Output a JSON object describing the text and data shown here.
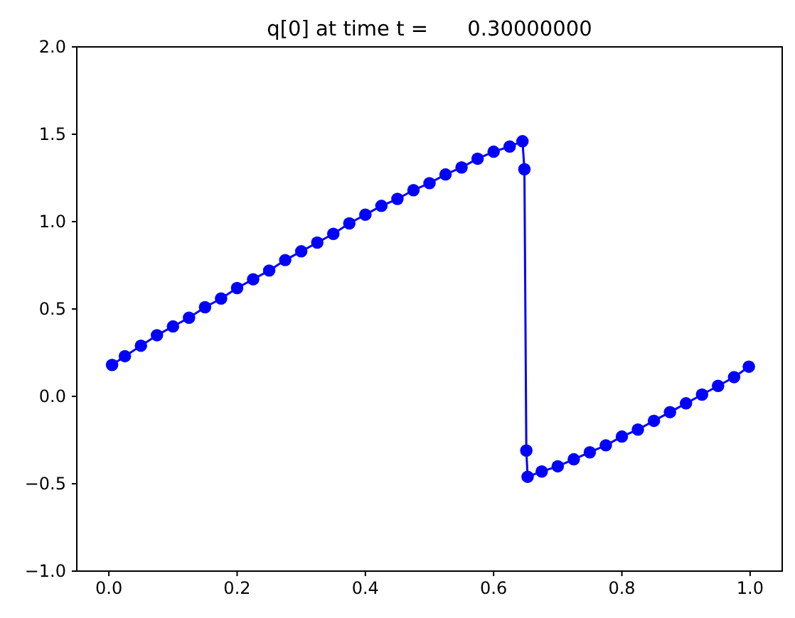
{
  "chart_data": {
    "type": "line",
    "title": "q[0] at time t =      0.30000000",
    "x": [
      0.005,
      0.025,
      0.05,
      0.075,
      0.1,
      0.125,
      0.15,
      0.175,
      0.2,
      0.225,
      0.25,
      0.275,
      0.3,
      0.325,
      0.35,
      0.375,
      0.4,
      0.425,
      0.45,
      0.475,
      0.5,
      0.525,
      0.55,
      0.575,
      0.6,
      0.625,
      0.645,
      0.648,
      0.651,
      0.653,
      0.675,
      0.7,
      0.725,
      0.75,
      0.775,
      0.8,
      0.825,
      0.85,
      0.875,
      0.9,
      0.925,
      0.95,
      0.975,
      0.998
    ],
    "series": [
      {
        "color": "#0000ff",
        "values": [
          0.18,
          0.23,
          0.29,
          0.35,
          0.4,
          0.45,
          0.51,
          0.56,
          0.62,
          0.67,
          0.72,
          0.78,
          0.83,
          0.88,
          0.93,
          0.99,
          1.04,
          1.09,
          1.13,
          1.18,
          1.22,
          1.27,
          1.31,
          1.36,
          1.4,
          1.43,
          1.46,
          1.3,
          -0.31,
          -0.46,
          -0.43,
          -0.4,
          -0.36,
          -0.32,
          -0.28,
          -0.23,
          -0.19,
          -0.14,
          -0.09,
          -0.04,
          0.01,
          0.06,
          0.11,
          0.17
        ]
      }
    ],
    "xlim": [
      -0.05,
      1.05
    ],
    "ylim": [
      -1.0,
      2.0
    ],
    "xticks": [
      {
        "value": 0,
        "label": "0.0"
      },
      0.2,
      0.4,
      0.6,
      0.8,
      {
        "value": 1,
        "label": "1.0"
      }
    ],
    "yticks": [
      {
        "value": -1,
        "label": "−1.0"
      },
      {
        "value": -0.5,
        "label": "−0.5"
      },
      {
        "value": 0,
        "label": "0.0"
      },
      0.5,
      {
        "value": 1,
        "label": "1.0"
      },
      1.5,
      {
        "value": 2,
        "label": "2.0"
      }
    ],
    "marker": "circle",
    "line_style": "solid",
    "grid": false
  }
}
